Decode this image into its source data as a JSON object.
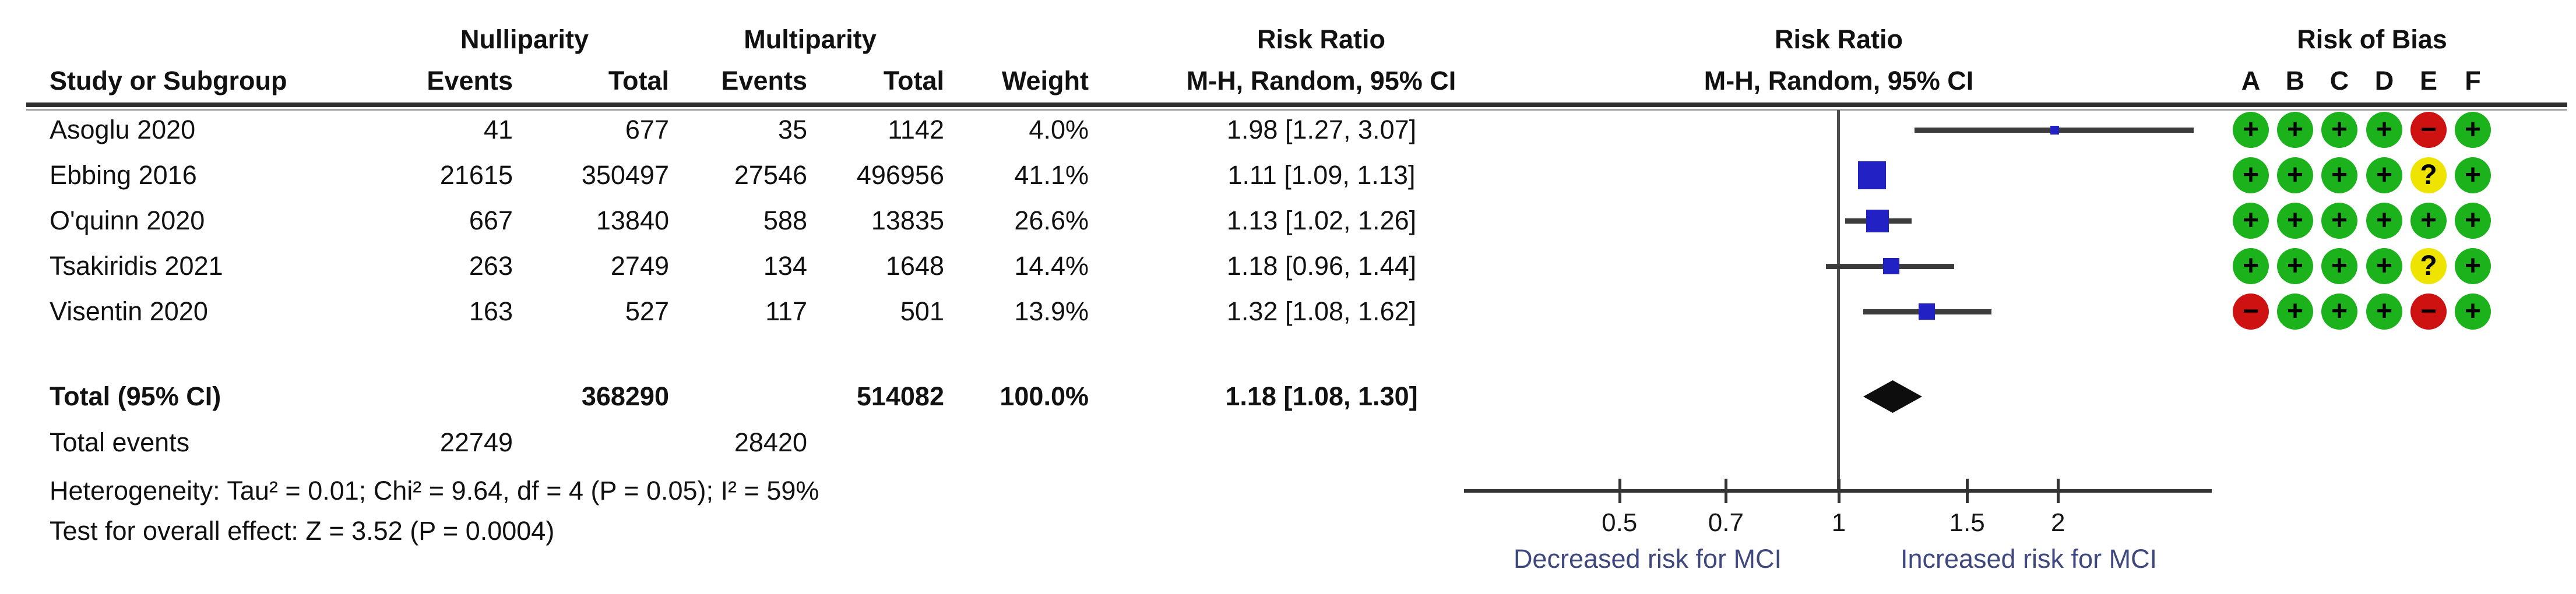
{
  "header": {
    "group_nulliparity": "Nulliparity",
    "group_multiparity": "Multiparity",
    "risk_ratio_text_title": "Risk Ratio",
    "risk_ratio_plot_title": "Risk Ratio",
    "risk_of_bias_title": "Risk of Bias",
    "study_col": "Study or Subgroup",
    "events_col_1": "Events",
    "total_col_1": "Total",
    "events_col_2": "Events",
    "total_col_2": "Total",
    "weight_col": "Weight",
    "mh_text_col": "M-H, Random, 95% CI",
    "mh_plot_col": "M-H, Random, 95% CI",
    "rob_letters": [
      "A",
      "B",
      "C",
      "D",
      "E",
      "F"
    ]
  },
  "studies": [
    {
      "name": "Asoglu 2020",
      "events1": "41",
      "total1": "677",
      "events2": "35",
      "total2": "1142",
      "weight": "4.0%",
      "ci_text": "1.98 [1.27, 3.07]",
      "bias": [
        "plus",
        "plus",
        "plus",
        "plus",
        "minus",
        "plus"
      ]
    },
    {
      "name": "Ebbing 2016",
      "events1": "21615",
      "total1": "350497",
      "events2": "27546",
      "total2": "496956",
      "weight": "41.1%",
      "ci_text": "1.11 [1.09, 1.13]",
      "bias": [
        "plus",
        "plus",
        "plus",
        "plus",
        "question",
        "plus"
      ]
    },
    {
      "name": "O'quinn 2020",
      "events1": "667",
      "total1": "13840",
      "events2": "588",
      "total2": "13835",
      "weight": "26.6%",
      "ci_text": "1.13 [1.02, 1.26]",
      "bias": [
        "plus",
        "plus",
        "plus",
        "plus",
        "plus",
        "plus"
      ]
    },
    {
      "name": "Tsakiridis 2021",
      "events1": "263",
      "total1": "2749",
      "events2": "134",
      "total2": "1648",
      "weight": "14.4%",
      "ci_text": "1.18 [0.96, 1.44]",
      "bias": [
        "plus",
        "plus",
        "plus",
        "plus",
        "question",
        "plus"
      ]
    },
    {
      "name": "Visentin 2020",
      "events1": "163",
      "total1": "527",
      "events2": "117",
      "total2": "501",
      "weight": "13.9%",
      "ci_text": "1.32 [1.08, 1.62]",
      "bias": [
        "minus",
        "plus",
        "plus",
        "plus",
        "minus",
        "plus"
      ]
    }
  ],
  "total_row": {
    "label": "Total (95% CI)",
    "total1": "368290",
    "total2": "514082",
    "weight": "100.0%",
    "ci_text": "1.18 [1.08, 1.30]"
  },
  "total_events_row": {
    "label": "Total events",
    "events1": "22749",
    "events2": "28420"
  },
  "heterogeneity_text": "Heterogeneity: Tau² = 0.01; Chi² = 9.64, df = 4 (P = 0.05); I² = 59%",
  "overall_effect_text": "Test for overall effect: Z = 3.52 (P = 0.0004)",
  "chart_data": {
    "type": "forest",
    "effect_measure": "Risk Ratio, M-H, Random, 95% CI",
    "x_scale": "log",
    "null_value": 1,
    "axis_ticks": [
      0.5,
      0.7,
      1,
      1.5,
      2
    ],
    "axis_displayed_range_approx": [
      0.31,
      3.25
    ],
    "studies": [
      {
        "study": "Asoglu 2020",
        "rr": 1.98,
        "ci_low": 1.27,
        "ci_high": 3.07,
        "weight_pct": 4.0
      },
      {
        "study": "Ebbing 2016",
        "rr": 1.11,
        "ci_low": 1.09,
        "ci_high": 1.13,
        "weight_pct": 41.1
      },
      {
        "study": "O'quinn 2020",
        "rr": 1.13,
        "ci_low": 1.02,
        "ci_high": 1.26,
        "weight_pct": 26.6
      },
      {
        "study": "Tsakiridis 2021",
        "rr": 1.18,
        "ci_low": 0.96,
        "ci_high": 1.44,
        "weight_pct": 14.4
      },
      {
        "study": "Visentin 2020",
        "rr": 1.32,
        "ci_low": 1.08,
        "ci_high": 1.62,
        "weight_pct": 13.9
      }
    ],
    "total": {
      "rr": 1.18,
      "ci_low": 1.08,
      "ci_high": 1.3,
      "weight_pct": 100.0
    },
    "left_direction_label": "Decreased risk for MCI",
    "right_direction_label": "Increased risk for MCI",
    "risk_of_bias_symbols": {
      "plus": "+",
      "question": "?",
      "minus": "−"
    }
  },
  "colors": {
    "square_blue": "#2222c4",
    "diamond_black": "#0d0d0d",
    "ci_line": "#3c3c3c",
    "rob_green": "#1cb21c",
    "rob_yellow": "#efe400",
    "rob_red": "#ce1111",
    "direction_label_blue": "#3e477e"
  }
}
